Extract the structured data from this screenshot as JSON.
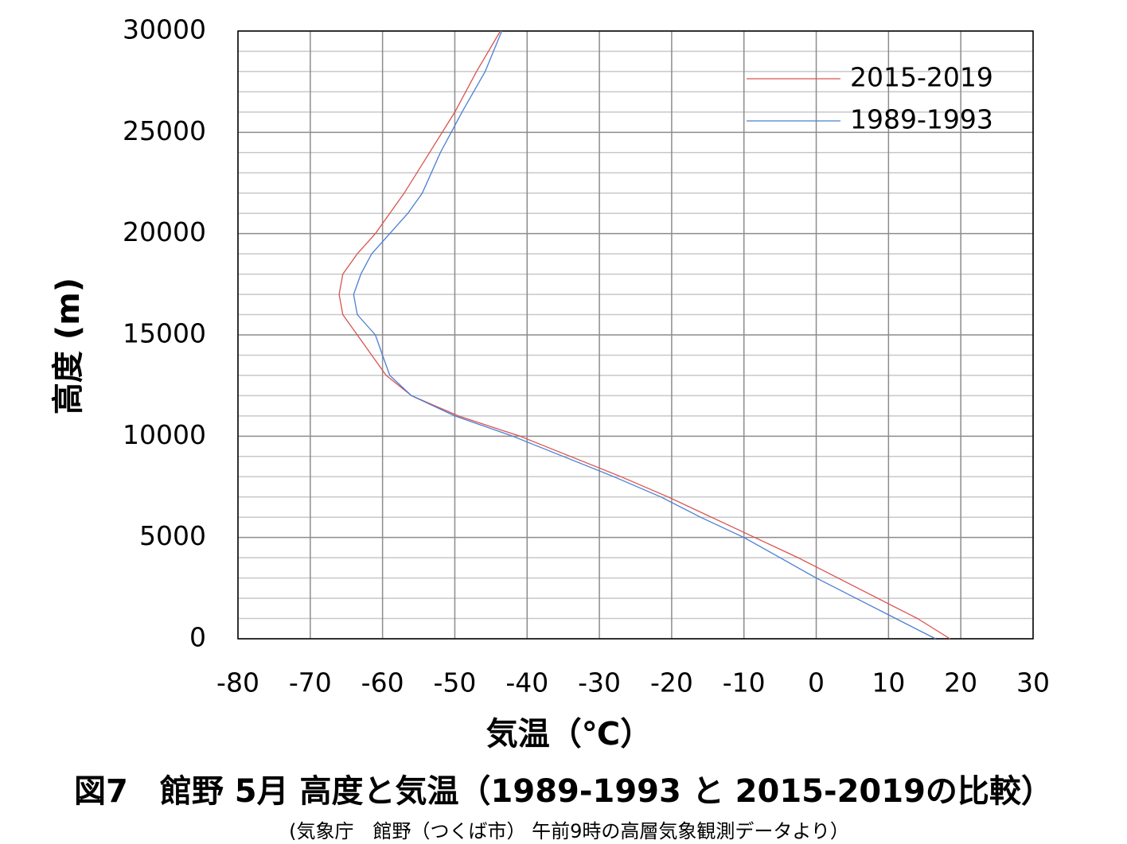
{
  "chart_data": {
    "type": "line",
    "title": "図7　館野 5月 高度と気温（1989-1993 と 2015-2019の比較）",
    "subtitle": "(気象庁　館野（つくば市） 午前9時の高層気象観測データより）",
    "x_label": "気温（℃）",
    "y_label": "高度 (m)",
    "xlim": [
      -80,
      30
    ],
    "xticks": [
      -80,
      -70,
      -60,
      -50,
      -40,
      -30,
      -20,
      -10,
      0,
      10,
      20,
      30
    ],
    "ylim": [
      0,
      30000
    ],
    "yticks": [
      0,
      5000,
      10000,
      15000,
      20000,
      25000,
      30000
    ],
    "yminorticks": [
      1000,
      2000,
      3000,
      4000,
      6000,
      7000,
      8000,
      9000,
      11000,
      12000,
      13000,
      14000,
      16000,
      17000,
      18000,
      19000,
      21000,
      22000,
      23000,
      24000,
      26000,
      27000,
      28000,
      29000
    ],
    "grid": true,
    "legend": "top-right",
    "series": [
      {
        "name": "2015-2019",
        "color": "#d9534f",
        "x": [
          18.5,
          14,
          8.5,
          3,
          -2.5,
          -8.5,
          -14.5,
          -20.5,
          -27,
          -34,
          -41,
          -49.5,
          -56,
          -59.5,
          -61.5,
          -63.5,
          -65.5,
          -66,
          -65.5,
          -63.5,
          -61,
          -59,
          -57,
          -53.5,
          -50,
          -47,
          -43.7
        ],
        "values": [
          0,
          1000,
          2000,
          3000,
          4000,
          5000,
          6000,
          7000,
          8000,
          9000,
          10000,
          11000,
          12000,
          13000,
          14000,
          15000,
          16000,
          17000,
          18000,
          19000,
          20000,
          21000,
          22000,
          24000,
          26000,
          28000,
          30000
        ]
      },
      {
        "name": "1989-1993",
        "color": "#4a7fd4",
        "x": [
          16.5,
          11,
          5.5,
          0,
          -5,
          -10,
          -16,
          -21.5,
          -28,
          -35,
          -42,
          -50,
          -56,
          -59,
          -60,
          -61,
          -63.5,
          -64,
          -63,
          -61.5,
          -59,
          -56.5,
          -54.5,
          -52,
          -49,
          -45.8,
          -43.5
        ],
        "values": [
          0,
          1000,
          2000,
          3000,
          4000,
          5000,
          6000,
          7000,
          8000,
          9000,
          10000,
          11000,
          12000,
          13000,
          14000,
          15000,
          16000,
          17000,
          18000,
          19000,
          20000,
          21000,
          22000,
          24000,
          26000,
          28000,
          30000
        ]
      }
    ]
  }
}
